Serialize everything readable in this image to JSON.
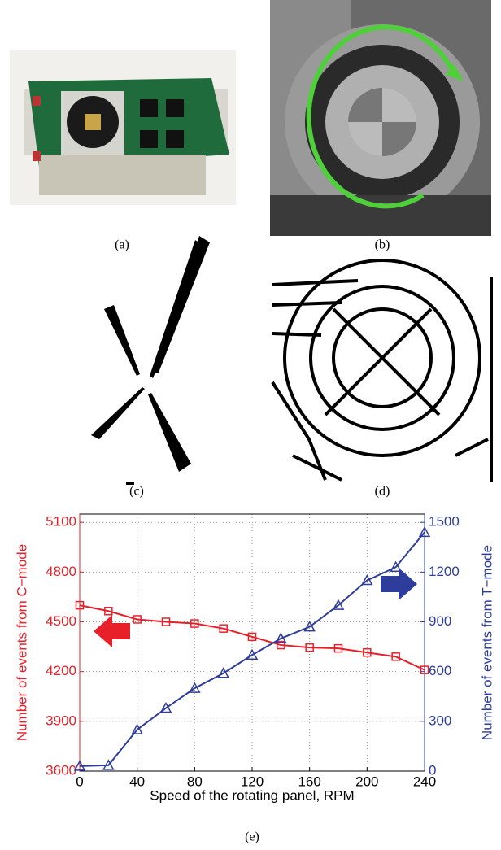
{
  "captions": [
    "(a)",
    "(b)",
    "(c)",
    "(d)",
    "(e)"
  ],
  "chart_data": {
    "type": "line",
    "x_label": "Speed of the rotating panel, RPM",
    "y_label": "Number of events from C−mode",
    "y2_label": "Number of events from T−mode",
    "x": [
      0,
      20,
      40,
      60,
      80,
      100,
      120,
      140,
      160,
      180,
      200,
      220,
      240
    ],
    "xlim": [
      0,
      240
    ],
    "xticks": [
      0,
      40,
      80,
      120,
      160,
      200,
      240
    ],
    "ylim": [
      3600,
      5150
    ],
    "yticks": [
      3600,
      3900,
      4200,
      4500,
      4800,
      5100
    ],
    "y2lim": [
      0,
      1550
    ],
    "y2ticks": [
      0,
      300,
      600,
      900,
      1200,
      1500
    ],
    "grid": true,
    "series": [
      {
        "color": "#e8202a",
        "marker": "square",
        "values": [
          4600,
          4565,
          4515,
          4500,
          4490,
          4460,
          4410,
          4360,
          4345,
          4340,
          4315,
          4290,
          4210
        ]
      },
      {
        "color": "#2e3d9b",
        "marker": "triangle",
        "axis": "y2",
        "values": [
          30,
          35,
          250,
          380,
          500,
          590,
          700,
          800,
          870,
          1000,
          1150,
          1230,
          1440
        ]
      }
    ]
  }
}
